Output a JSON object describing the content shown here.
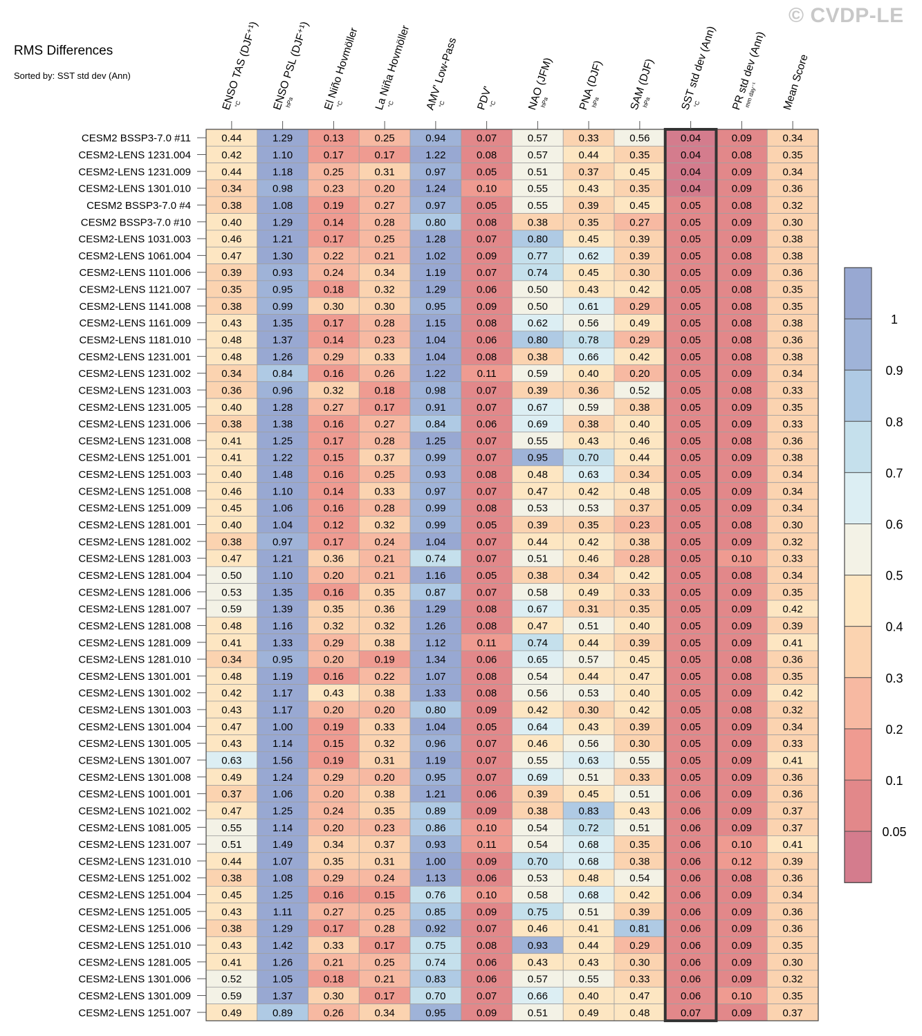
{
  "watermark": "© CVDP-LE",
  "title": "RMS Differences",
  "subtitle": "Sorted by: SST std dev (Ann)",
  "chart_data": {
    "type": "heatmap",
    "title": "RMS Differences",
    "subtitle": "Sorted by: SST std dev (Ann)",
    "highlight_column": "SST std dev (Ann)",
    "columns": [
      {
        "name": "ENSO TAS (DJF⁺¹)",
        "unit": "°C"
      },
      {
        "name": "ENSO PSL (DJF⁺¹)",
        "unit": "hPa"
      },
      {
        "name": "El Niño Hovmöller",
        "unit": "°C"
      },
      {
        "name": "La Niña Hovmöller",
        "unit": "°C"
      },
      {
        "name": "AMV' Low-Pass",
        "unit": "°C"
      },
      {
        "name": "PDV'",
        "unit": "°C"
      },
      {
        "name": "NAO (JFM)",
        "unit": "hPa"
      },
      {
        "name": "PNA (DJF)",
        "unit": "hPa"
      },
      {
        "name": "SAM (DJF)",
        "unit": "hPa"
      },
      {
        "name": "SST std dev (Ann)",
        "unit": "°C"
      },
      {
        "name": "PR std dev (Ann)",
        "unit": "mm day⁻¹"
      },
      {
        "name": "Mean Score",
        "unit": ""
      }
    ],
    "rows": [
      "CESM2 BSSP3-7.0 #11",
      "CESM2-LENS 1231.004",
      "CESM2-LENS 1231.009",
      "CESM2-LENS 1301.010",
      "CESM2 BSSP3-7.0 #4",
      "CESM2 BSSP3-7.0 #10",
      "CESM2-LENS 1031.003",
      "CESM2-LENS 1061.004",
      "CESM2-LENS 1101.006",
      "CESM2-LENS 1121.007",
      "CESM2-LENS 1141.008",
      "CESM2-LENS 1161.009",
      "CESM2-LENS 1181.010",
      "CESM2-LENS 1231.001",
      "CESM2-LENS 1231.002",
      "CESM2-LENS 1231.003",
      "CESM2-LENS 1231.005",
      "CESM2-LENS 1231.006",
      "CESM2-LENS 1231.008",
      "CESM2-LENS 1251.001",
      "CESM2-LENS 1251.003",
      "CESM2-LENS 1251.008",
      "CESM2-LENS 1251.009",
      "CESM2-LENS 1281.001",
      "CESM2-LENS 1281.002",
      "CESM2-LENS 1281.003",
      "CESM2-LENS 1281.004",
      "CESM2-LENS 1281.006",
      "CESM2-LENS 1281.007",
      "CESM2-LENS 1281.008",
      "CESM2-LENS 1281.009",
      "CESM2-LENS 1281.010",
      "CESM2-LENS 1301.001",
      "CESM2-LENS 1301.002",
      "CESM2-LENS 1301.003",
      "CESM2-LENS 1301.004",
      "CESM2-LENS 1301.005",
      "CESM2-LENS 1301.007",
      "CESM2-LENS 1301.008",
      "CESM2-LENS 1001.001",
      "CESM2-LENS 1021.002",
      "CESM2-LENS 1081.005",
      "CESM2-LENS 1231.007",
      "CESM2-LENS 1231.010",
      "CESM2-LENS 1251.002",
      "CESM2-LENS 1251.004",
      "CESM2-LENS 1251.005",
      "CESM2-LENS 1251.006",
      "CESM2-LENS 1251.010",
      "CESM2-LENS 1281.005",
      "CESM2-LENS 1301.006",
      "CESM2-LENS 1301.009",
      "CESM2-LENS 1251.007"
    ],
    "values": [
      [
        "0.44",
        "1.29",
        "0.13",
        "0.25",
        "0.94",
        "0.07",
        "0.57",
        "0.33",
        "0.56",
        "0.04",
        "0.09",
        "0.34"
      ],
      [
        "0.42",
        "1.10",
        "0.17",
        "0.17",
        "1.22",
        "0.08",
        "0.57",
        "0.44",
        "0.35",
        "0.04",
        "0.08",
        "0.35"
      ],
      [
        "0.44",
        "1.18",
        "0.25",
        "0.31",
        "0.97",
        "0.05",
        "0.51",
        "0.37",
        "0.45",
        "0.04",
        "0.09",
        "0.34"
      ],
      [
        "0.34",
        "0.98",
        "0.23",
        "0.20",
        "1.24",
        "0.10",
        "0.55",
        "0.43",
        "0.35",
        "0.04",
        "0.09",
        "0.36"
      ],
      [
        "0.38",
        "1.08",
        "0.19",
        "0.27",
        "0.97",
        "0.05",
        "0.55",
        "0.39",
        "0.45",
        "0.05",
        "0.08",
        "0.32"
      ],
      [
        "0.40",
        "1.29",
        "0.14",
        "0.28",
        "0.80",
        "0.08",
        "0.38",
        "0.35",
        "0.27",
        "0.05",
        "0.09",
        "0.30"
      ],
      [
        "0.46",
        "1.21",
        "0.17",
        "0.25",
        "1.28",
        "0.07",
        "0.80",
        "0.45",
        "0.39",
        "0.05",
        "0.09",
        "0.38"
      ],
      [
        "0.47",
        "1.30",
        "0.22",
        "0.21",
        "1.02",
        "0.09",
        "0.77",
        "0.62",
        "0.39",
        "0.05",
        "0.08",
        "0.38"
      ],
      [
        "0.39",
        "0.93",
        "0.24",
        "0.34",
        "1.19",
        "0.07",
        "0.74",
        "0.45",
        "0.30",
        "0.05",
        "0.09",
        "0.36"
      ],
      [
        "0.35",
        "0.95",
        "0.18",
        "0.32",
        "1.29",
        "0.06",
        "0.50",
        "0.43",
        "0.42",
        "0.05",
        "0.08",
        "0.35"
      ],
      [
        "0.38",
        "0.99",
        "0.30",
        "0.30",
        "0.95",
        "0.09",
        "0.50",
        "0.61",
        "0.29",
        "0.05",
        "0.08",
        "0.35"
      ],
      [
        "0.43",
        "1.35",
        "0.17",
        "0.28",
        "1.15",
        "0.08",
        "0.62",
        "0.56",
        "0.49",
        "0.05",
        "0.08",
        "0.38"
      ],
      [
        "0.48",
        "1.37",
        "0.14",
        "0.23",
        "1.04",
        "0.06",
        "0.80",
        "0.78",
        "0.29",
        "0.05",
        "0.08",
        "0.36"
      ],
      [
        "0.48",
        "1.26",
        "0.29",
        "0.33",
        "1.04",
        "0.08",
        "0.38",
        "0.66",
        "0.42",
        "0.05",
        "0.08",
        "0.38"
      ],
      [
        "0.34",
        "0.84",
        "0.16",
        "0.26",
        "1.22",
        "0.11",
        "0.59",
        "0.40",
        "0.20",
        "0.05",
        "0.09",
        "0.34"
      ],
      [
        "0.36",
        "0.96",
        "0.32",
        "0.18",
        "0.98",
        "0.07",
        "0.39",
        "0.36",
        "0.52",
        "0.05",
        "0.08",
        "0.33"
      ],
      [
        "0.40",
        "1.28",
        "0.27",
        "0.17",
        "0.91",
        "0.07",
        "0.67",
        "0.59",
        "0.38",
        "0.05",
        "0.09",
        "0.35"
      ],
      [
        "0.38",
        "1.38",
        "0.16",
        "0.27",
        "0.84",
        "0.06",
        "0.69",
        "0.38",
        "0.40",
        "0.05",
        "0.09",
        "0.33"
      ],
      [
        "0.41",
        "1.25",
        "0.17",
        "0.28",
        "1.25",
        "0.07",
        "0.55",
        "0.43",
        "0.46",
        "0.05",
        "0.08",
        "0.36"
      ],
      [
        "0.41",
        "1.22",
        "0.15",
        "0.37",
        "0.99",
        "0.07",
        "0.95",
        "0.70",
        "0.44",
        "0.05",
        "0.09",
        "0.38"
      ],
      [
        "0.40",
        "1.48",
        "0.16",
        "0.25",
        "0.93",
        "0.08",
        "0.48",
        "0.63",
        "0.34",
        "0.05",
        "0.09",
        "0.34"
      ],
      [
        "0.46",
        "1.10",
        "0.14",
        "0.33",
        "0.97",
        "0.07",
        "0.47",
        "0.42",
        "0.48",
        "0.05",
        "0.09",
        "0.34"
      ],
      [
        "0.45",
        "1.06",
        "0.16",
        "0.28",
        "0.99",
        "0.08",
        "0.53",
        "0.53",
        "0.37",
        "0.05",
        "0.09",
        "0.34"
      ],
      [
        "0.40",
        "1.04",
        "0.12",
        "0.32",
        "0.99",
        "0.05",
        "0.39",
        "0.35",
        "0.23",
        "0.05",
        "0.08",
        "0.30"
      ],
      [
        "0.38",
        "0.97",
        "0.17",
        "0.24",
        "1.04",
        "0.07",
        "0.44",
        "0.42",
        "0.38",
        "0.05",
        "0.09",
        "0.32"
      ],
      [
        "0.47",
        "1.21",
        "0.36",
        "0.21",
        "0.74",
        "0.07",
        "0.51",
        "0.46",
        "0.28",
        "0.05",
        "0.10",
        "0.33"
      ],
      [
        "0.50",
        "1.10",
        "0.20",
        "0.21",
        "1.16",
        "0.05",
        "0.38",
        "0.34",
        "0.42",
        "0.05",
        "0.08",
        "0.34"
      ],
      [
        "0.53",
        "1.35",
        "0.16",
        "0.35",
        "0.87",
        "0.07",
        "0.58",
        "0.49",
        "0.33",
        "0.05",
        "0.09",
        "0.35"
      ],
      [
        "0.59",
        "1.39",
        "0.35",
        "0.36",
        "1.29",
        "0.08",
        "0.67",
        "0.31",
        "0.35",
        "0.05",
        "0.09",
        "0.42"
      ],
      [
        "0.48",
        "1.16",
        "0.32",
        "0.32",
        "1.26",
        "0.08",
        "0.47",
        "0.51",
        "0.40",
        "0.05",
        "0.09",
        "0.39"
      ],
      [
        "0.41",
        "1.33",
        "0.29",
        "0.38",
        "1.12",
        "0.11",
        "0.74",
        "0.44",
        "0.39",
        "0.05",
        "0.09",
        "0.41"
      ],
      [
        "0.34",
        "0.95",
        "0.20",
        "0.19",
        "1.34",
        "0.06",
        "0.65",
        "0.57",
        "0.45",
        "0.05",
        "0.08",
        "0.36"
      ],
      [
        "0.48",
        "1.19",
        "0.16",
        "0.22",
        "1.07",
        "0.08",
        "0.54",
        "0.44",
        "0.47",
        "0.05",
        "0.08",
        "0.35"
      ],
      [
        "0.42",
        "1.17",
        "0.43",
        "0.38",
        "1.33",
        "0.08",
        "0.56",
        "0.53",
        "0.40",
        "0.05",
        "0.09",
        "0.42"
      ],
      [
        "0.43",
        "1.17",
        "0.20",
        "0.20",
        "0.80",
        "0.09",
        "0.42",
        "0.30",
        "0.42",
        "0.05",
        "0.08",
        "0.32"
      ],
      [
        "0.47",
        "1.00",
        "0.19",
        "0.33",
        "1.04",
        "0.05",
        "0.64",
        "0.43",
        "0.39",
        "0.05",
        "0.09",
        "0.34"
      ],
      [
        "0.43",
        "1.14",
        "0.15",
        "0.32",
        "0.96",
        "0.07",
        "0.46",
        "0.56",
        "0.30",
        "0.05",
        "0.09",
        "0.33"
      ],
      [
        "0.63",
        "1.56",
        "0.19",
        "0.31",
        "1.19",
        "0.07",
        "0.55",
        "0.63",
        "0.55",
        "0.05",
        "0.09",
        "0.41"
      ],
      [
        "0.49",
        "1.24",
        "0.29",
        "0.20",
        "0.95",
        "0.07",
        "0.69",
        "0.51",
        "0.33",
        "0.05",
        "0.09",
        "0.36"
      ],
      [
        "0.37",
        "1.06",
        "0.20",
        "0.38",
        "1.21",
        "0.06",
        "0.39",
        "0.45",
        "0.51",
        "0.06",
        "0.09",
        "0.36"
      ],
      [
        "0.47",
        "1.25",
        "0.24",
        "0.35",
        "0.89",
        "0.09",
        "0.38",
        "0.83",
        "0.43",
        "0.06",
        "0.09",
        "0.37"
      ],
      [
        "0.55",
        "1.14",
        "0.20",
        "0.23",
        "0.86",
        "0.10",
        "0.54",
        "0.72",
        "0.51",
        "0.06",
        "0.09",
        "0.37"
      ],
      [
        "0.51",
        "1.49",
        "0.34",
        "0.37",
        "0.93",
        "0.11",
        "0.54",
        "0.68",
        "0.35",
        "0.06",
        "0.10",
        "0.41"
      ],
      [
        "0.44",
        "1.07",
        "0.35",
        "0.31",
        "1.00",
        "0.09",
        "0.70",
        "0.68",
        "0.38",
        "0.06",
        "0.12",
        "0.39"
      ],
      [
        "0.38",
        "1.08",
        "0.29",
        "0.24",
        "1.13",
        "0.06",
        "0.53",
        "0.48",
        "0.54",
        "0.06",
        "0.08",
        "0.36"
      ],
      [
        "0.45",
        "1.25",
        "0.16",
        "0.15",
        "0.76",
        "0.10",
        "0.58",
        "0.68",
        "0.42",
        "0.06",
        "0.09",
        "0.34"
      ],
      [
        "0.43",
        "1.11",
        "0.27",
        "0.25",
        "0.85",
        "0.09",
        "0.75",
        "0.51",
        "0.39",
        "0.06",
        "0.09",
        "0.36"
      ],
      [
        "0.38",
        "1.29",
        "0.17",
        "0.28",
        "0.92",
        "0.07",
        "0.46",
        "0.41",
        "0.81",
        "0.06",
        "0.09",
        "0.36"
      ],
      [
        "0.43",
        "1.42",
        "0.33",
        "0.17",
        "0.75",
        "0.08",
        "0.93",
        "0.44",
        "0.29",
        "0.06",
        "0.09",
        "0.35"
      ],
      [
        "0.41",
        "1.26",
        "0.21",
        "0.25",
        "0.74",
        "0.06",
        "0.43",
        "0.43",
        "0.30",
        "0.06",
        "0.09",
        "0.30"
      ],
      [
        "0.52",
        "1.05",
        "0.18",
        "0.21",
        "0.83",
        "0.06",
        "0.57",
        "0.55",
        "0.33",
        "0.06",
        "0.09",
        "0.32"
      ],
      [
        "0.59",
        "1.37",
        "0.30",
        "0.17",
        "0.70",
        "0.07",
        "0.66",
        "0.40",
        "0.47",
        "0.06",
        "0.10",
        "0.35"
      ],
      [
        "0.49",
        "0.89",
        "0.26",
        "0.34",
        "0.95",
        "0.09",
        "0.51",
        "0.49",
        "0.48",
        "0.07",
        "0.09",
        "0.37"
      ]
    ],
    "colorbar": {
      "boundaries": [
        0,
        0.05,
        0.1,
        0.2,
        0.3,
        0.4,
        0.5,
        0.6,
        0.7,
        0.8,
        0.9,
        1,
        1.1
      ],
      "tick_labels": [
        "0.05",
        "0.1",
        "0.2",
        "0.3",
        "0.4",
        "0.5",
        "0.6",
        "0.7",
        "0.8",
        "0.9",
        "1"
      ],
      "colors": [
        "#d47c8d",
        "#e2888a",
        "#ef9b91",
        "#f7b9a2",
        "#fbd3b0",
        "#fde6c2",
        "#f3f2e6",
        "#dceef3",
        "#c5e0ec",
        "#afcae4",
        "#9fb3d8",
        "#98a8d2"
      ]
    }
  }
}
